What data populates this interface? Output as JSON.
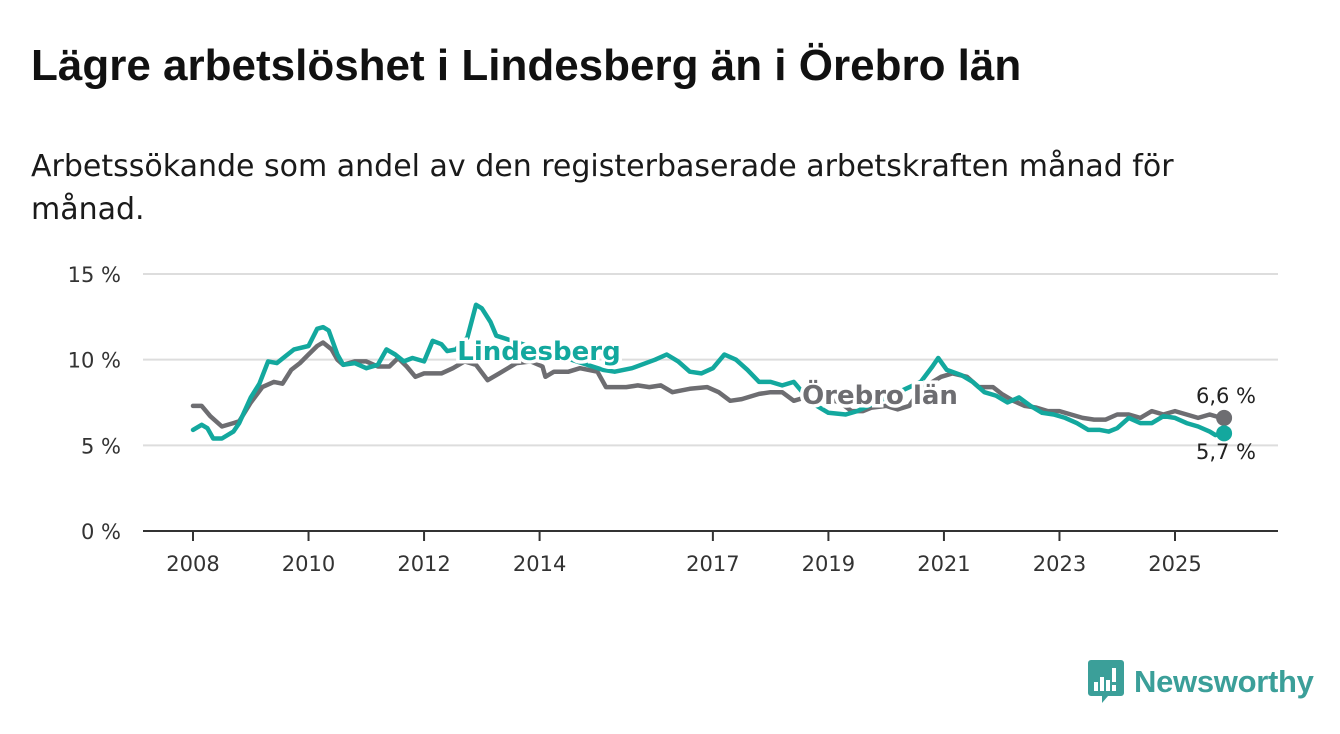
{
  "header": {
    "title": "Lägre arbetslöshet i Lindesberg än i Örebro län",
    "subtitle": "Arbetssökande som andel av den registerbaserade arbetskraften månad för månad."
  },
  "brand": {
    "name": "Newsworthy",
    "color": "#3b9f99",
    "icon": "bar-chart-logo-icon"
  },
  "colors": {
    "lindesberg": "#13a89e",
    "orebro": "#6d6d71",
    "grid": "#dddddd",
    "axis": "#333333"
  },
  "chart_data": {
    "type": "line",
    "title": "Lägre arbetslöshet i Lindesberg än i Örebro län",
    "xlabel": "",
    "ylabel": "",
    "xlim": [
      2008,
      2026.8
    ],
    "ylim": [
      0,
      15
    ],
    "y_ticks": [
      0,
      5,
      10,
      15
    ],
    "y_tick_labels": [
      "0 %",
      "5 %",
      "10 %",
      "15 %"
    ],
    "x_ticks": [
      2008,
      2010,
      2012,
      2014,
      2017,
      2019,
      2021,
      2023,
      2025
    ],
    "x_tick_labels": [
      "2008",
      "2010",
      "2012",
      "2014",
      "2017",
      "2019",
      "2021",
      "2023",
      "2025"
    ],
    "grid": true,
    "series": [
      {
        "name": "Örebro län",
        "label": "Örebro län",
        "color": "#6d6d71",
        "end_label": "6,6 %",
        "points": [
          [
            2008.0,
            7.3
          ],
          [
            2008.15,
            7.3
          ],
          [
            2008.3,
            6.7
          ],
          [
            2008.5,
            6.1
          ],
          [
            2008.7,
            6.3
          ],
          [
            2008.8,
            6.4
          ],
          [
            2009.0,
            7.5
          ],
          [
            2009.2,
            8.4
          ],
          [
            2009.4,
            8.7
          ],
          [
            2009.55,
            8.6
          ],
          [
            2009.7,
            9.4
          ],
          [
            2009.85,
            9.8
          ],
          [
            2010.0,
            10.3
          ],
          [
            2010.15,
            10.8
          ],
          [
            2010.25,
            11.0
          ],
          [
            2010.4,
            10.6
          ],
          [
            2010.5,
            10.0
          ],
          [
            2010.6,
            9.7
          ],
          [
            2010.8,
            9.9
          ],
          [
            2011.0,
            9.9
          ],
          [
            2011.2,
            9.6
          ],
          [
            2011.4,
            9.6
          ],
          [
            2011.55,
            10.1
          ],
          [
            2011.7,
            9.6
          ],
          [
            2011.85,
            9.0
          ],
          [
            2012.0,
            9.2
          ],
          [
            2012.3,
            9.2
          ],
          [
            2012.5,
            9.5
          ],
          [
            2012.7,
            9.9
          ],
          [
            2012.9,
            9.7
          ],
          [
            2013.1,
            8.8
          ],
          [
            2013.3,
            9.2
          ],
          [
            2013.6,
            9.8
          ],
          [
            2013.85,
            9.9
          ],
          [
            2014.05,
            9.6
          ],
          [
            2014.1,
            9.0
          ],
          [
            2014.25,
            9.3
          ],
          [
            2014.5,
            9.3
          ],
          [
            2014.7,
            9.5
          ],
          [
            2015.0,
            9.3
          ],
          [
            2015.15,
            8.4
          ],
          [
            2015.3,
            8.4
          ],
          [
            2015.5,
            8.4
          ],
          [
            2015.7,
            8.5
          ],
          [
            2015.9,
            8.4
          ],
          [
            2016.1,
            8.5
          ],
          [
            2016.3,
            8.1
          ],
          [
            2016.6,
            8.3
          ],
          [
            2016.9,
            8.4
          ],
          [
            2017.1,
            8.1
          ],
          [
            2017.3,
            7.6
          ],
          [
            2017.5,
            7.7
          ],
          [
            2017.8,
            8.0
          ],
          [
            2018.0,
            8.1
          ],
          [
            2018.2,
            8.1
          ],
          [
            2018.4,
            7.6
          ],
          [
            2018.6,
            7.8
          ],
          [
            2018.8,
            7.6
          ],
          [
            2019.0,
            7.7
          ],
          [
            2019.2,
            7.5
          ],
          [
            2019.4,
            7.0
          ],
          [
            2019.6,
            7.0
          ],
          [
            2019.75,
            7.2
          ],
          [
            2020.0,
            7.3
          ],
          [
            2020.2,
            7.1
          ],
          [
            2020.4,
            7.3
          ],
          [
            2020.6,
            8.3
          ],
          [
            2020.8,
            8.7
          ],
          [
            2020.95,
            9.0
          ],
          [
            2021.15,
            9.2
          ],
          [
            2021.4,
            9.0
          ],
          [
            2021.6,
            8.4
          ],
          [
            2021.85,
            8.4
          ],
          [
            2022.0,
            8.0
          ],
          [
            2022.2,
            7.6
          ],
          [
            2022.4,
            7.3
          ],
          [
            2022.6,
            7.2
          ],
          [
            2022.8,
            7.0
          ],
          [
            2023.0,
            7.0
          ],
          [
            2023.2,
            6.8
          ],
          [
            2023.4,
            6.6
          ],
          [
            2023.6,
            6.5
          ],
          [
            2023.8,
            6.5
          ],
          [
            2024.0,
            6.8
          ],
          [
            2024.2,
            6.8
          ],
          [
            2024.4,
            6.6
          ],
          [
            2024.6,
            7.0
          ],
          [
            2024.8,
            6.8
          ],
          [
            2025.0,
            7.0
          ],
          [
            2025.2,
            6.8
          ],
          [
            2025.4,
            6.6
          ],
          [
            2025.6,
            6.8
          ],
          [
            2025.8,
            6.6
          ],
          [
            2025.85,
            6.6
          ]
        ]
      },
      {
        "name": "Lindesberg",
        "label": "Lindesberg",
        "color": "#13a89e",
        "end_label": "5,7 %",
        "points": [
          [
            2008.0,
            5.9
          ],
          [
            2008.15,
            6.2
          ],
          [
            2008.25,
            6.0
          ],
          [
            2008.35,
            5.4
          ],
          [
            2008.5,
            5.4
          ],
          [
            2008.7,
            5.8
          ],
          [
            2008.8,
            6.3
          ],
          [
            2009.0,
            7.8
          ],
          [
            2009.15,
            8.6
          ],
          [
            2009.3,
            9.9
          ],
          [
            2009.45,
            9.8
          ],
          [
            2009.6,
            10.2
          ],
          [
            2009.75,
            10.6
          ],
          [
            2010.0,
            10.8
          ],
          [
            2010.15,
            11.8
          ],
          [
            2010.25,
            11.9
          ],
          [
            2010.35,
            11.7
          ],
          [
            2010.5,
            10.3
          ],
          [
            2010.6,
            9.7
          ],
          [
            2010.8,
            9.8
          ],
          [
            2011.0,
            9.5
          ],
          [
            2011.2,
            9.7
          ],
          [
            2011.35,
            10.6
          ],
          [
            2011.5,
            10.3
          ],
          [
            2011.65,
            9.9
          ],
          [
            2011.8,
            10.1
          ],
          [
            2012.0,
            9.9
          ],
          [
            2012.15,
            11.1
          ],
          [
            2012.3,
            10.9
          ],
          [
            2012.4,
            10.5
          ],
          [
            2012.55,
            10.6
          ],
          [
            2012.75,
            11.3
          ],
          [
            2012.9,
            13.2
          ],
          [
            2013.0,
            13.0
          ],
          [
            2013.15,
            12.2
          ],
          [
            2013.25,
            11.4
          ],
          [
            2015.1,
            9.4
          ],
          [
            2015.3,
            9.3
          ],
          [
            2015.6,
            9.5
          ],
          [
            2016.0,
            10.0
          ],
          [
            2016.2,
            10.3
          ],
          [
            2016.4,
            9.9
          ],
          [
            2016.6,
            9.3
          ],
          [
            2016.8,
            9.2
          ],
          [
            2017.0,
            9.5
          ],
          [
            2017.2,
            10.3
          ],
          [
            2017.4,
            10.0
          ],
          [
            2017.6,
            9.4
          ],
          [
            2017.8,
            8.7
          ],
          [
            2018.0,
            8.7
          ],
          [
            2018.2,
            8.5
          ],
          [
            2018.4,
            8.7
          ],
          [
            2018.6,
            7.9
          ],
          [
            2018.8,
            7.3
          ],
          [
            2019.0,
            6.9
          ],
          [
            2019.3,
            6.8
          ],
          [
            2019.5,
            7.0
          ],
          [
            2020.6,
            8.7
          ],
          [
            2020.8,
            9.6
          ],
          [
            2020.9,
            10.1
          ],
          [
            2021.05,
            9.4
          ],
          [
            2021.3,
            9.1
          ],
          [
            2021.5,
            8.7
          ],
          [
            2021.7,
            8.1
          ],
          [
            2021.9,
            7.9
          ],
          [
            2022.1,
            7.5
          ],
          [
            2022.3,
            7.8
          ],
          [
            2022.5,
            7.3
          ],
          [
            2022.7,
            6.9
          ],
          [
            2022.9,
            6.8
          ],
          [
            2023.1,
            6.6
          ],
          [
            2023.3,
            6.3
          ],
          [
            2023.5,
            5.9
          ],
          [
            2023.7,
            5.9
          ],
          [
            2023.85,
            5.8
          ],
          [
            2024.0,
            6.0
          ],
          [
            2024.2,
            6.6
          ],
          [
            2024.4,
            6.3
          ],
          [
            2024.6,
            6.3
          ],
          [
            2024.8,
            6.7
          ],
          [
            2025.0,
            6.6
          ],
          [
            2025.2,
            6.3
          ],
          [
            2025.4,
            6.1
          ],
          [
            2025.6,
            5.8
          ],
          [
            2025.7,
            5.6
          ],
          [
            2025.85,
            5.7
          ]
        ]
      }
    ]
  }
}
